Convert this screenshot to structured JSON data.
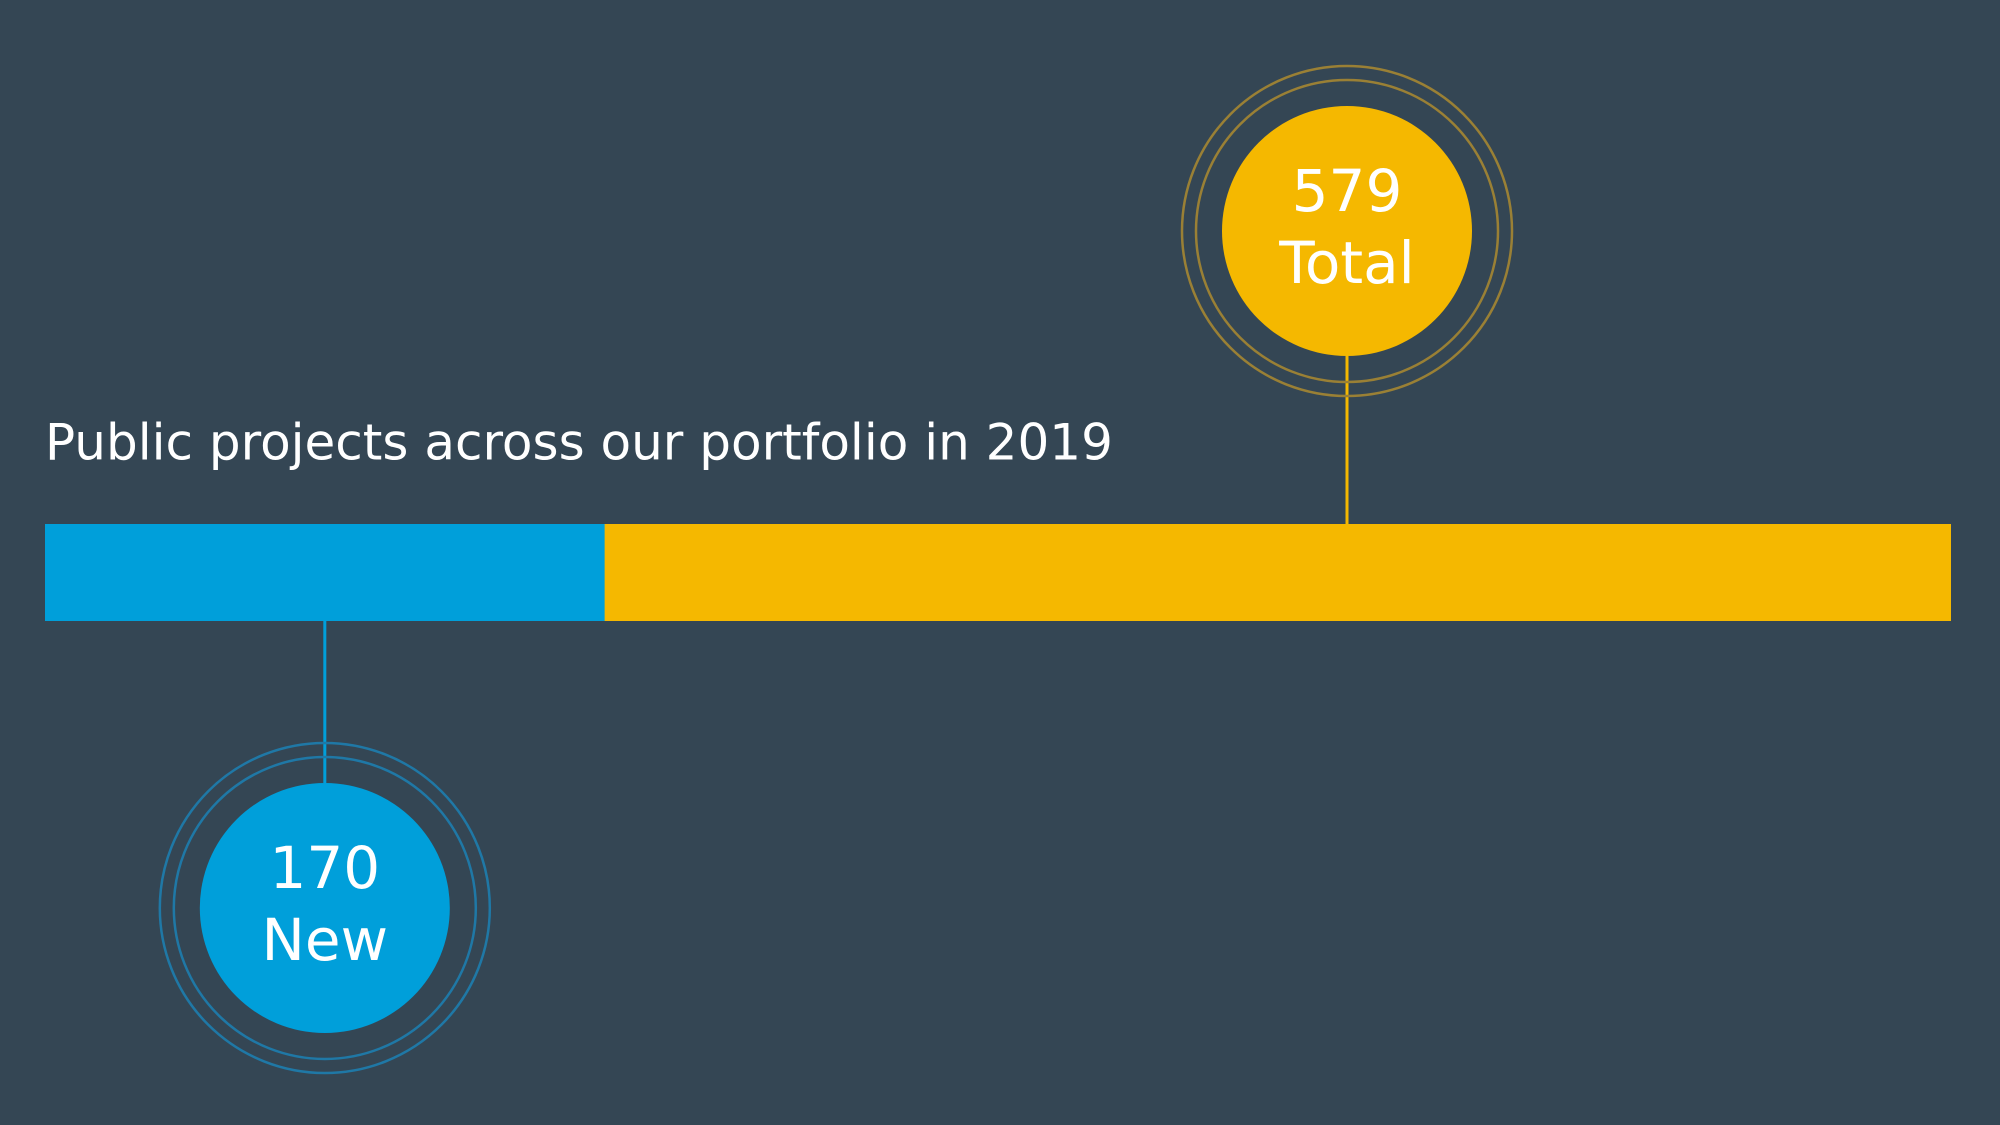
{
  "chart_data": {
    "type": "bar",
    "title": "Public projects across our portfolio in 2019",
    "series": [
      {
        "name": "New",
        "color": "#009fda",
        "values": [
          170
        ]
      },
      {
        "name": "Total",
        "color": "#f5b800",
        "values": [
          579
        ]
      }
    ]
  }
}
